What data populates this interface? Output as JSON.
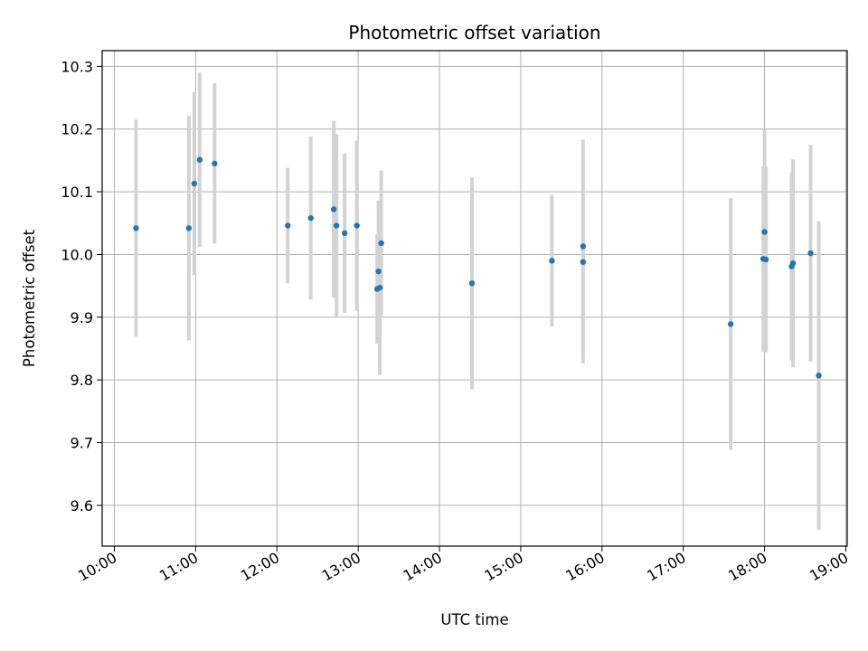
{
  "chart_data": {
    "type": "scatter",
    "title": "Photometric offset variation",
    "xlabel": "UTC time",
    "ylabel": "Photometric offset",
    "grid": true,
    "legend": "none",
    "x_is_time": true,
    "xlim": [
      "09:51",
      "19:01"
    ],
    "ylim": [
      9.535,
      10.325
    ],
    "x_ticks": [
      "10:00",
      "11:00",
      "12:00",
      "13:00",
      "14:00",
      "15:00",
      "16:00",
      "17:00",
      "18:00",
      "19:00"
    ],
    "y_ticks": [
      "9.6",
      "9.7",
      "9.8",
      "9.9",
      "10.0",
      "10.1",
      "10.2",
      "10.3"
    ],
    "colors": {
      "point": "#1f77b4",
      "errorbar": "#d3d3d3",
      "grid": "#b0b0b0"
    },
    "series": [
      {
        "points": [
          {
            "x": "10:16",
            "y": 10.042,
            "yerr": 0.173
          },
          {
            "x": "10:55",
            "y": 10.042,
            "yerr": 0.179
          },
          {
            "x": "10:59",
            "y": 10.113,
            "yerr": 0.146
          },
          {
            "x": "11:03",
            "y": 10.151,
            "yerr": 0.139
          },
          {
            "x": "11:14",
            "y": 10.145,
            "yerr": 0.128
          },
          {
            "x": "12:08",
            "y": 10.046,
            "yerr": 0.092
          },
          {
            "x": "12:25",
            "y": 10.058,
            "yerr": 0.13
          },
          {
            "x": "12:42",
            "y": 10.072,
            "yerr": 0.141
          },
          {
            "x": "12:44",
            "y": 10.046,
            "yerr": 0.146
          },
          {
            "x": "12:50",
            "y": 10.034,
            "yerr": 0.127
          },
          {
            "x": "12:59",
            "y": 10.046,
            "yerr": 0.136
          },
          {
            "x": "13:14",
            "y": 9.945,
            "yerr": 0.087
          },
          {
            "x": "13:15",
            "y": 9.973,
            "yerr": 0.113
          },
          {
            "x": "13:16",
            "y": 9.947,
            "yerr": 0.139
          },
          {
            "x": "13:17",
            "y": 10.018,
            "yerr": 0.116
          },
          {
            "x": "14:24",
            "y": 9.954,
            "yerr": 0.169
          },
          {
            "x": "15:23",
            "y": 9.99,
            "yerr": 0.105
          },
          {
            "x": "15:46",
            "y": 9.988,
            "yerr": 0.162
          },
          {
            "x": "15:46",
            "y": 10.013,
            "yerr": 0.17
          },
          {
            "x": "17:35",
            "y": 9.889,
            "yerr": 0.201
          },
          {
            "x": "17:59",
            "y": 9.993,
            "yerr": 0.148
          },
          {
            "x": "18:00",
            "y": 10.036,
            "yerr": 0.164
          },
          {
            "x": "18:01",
            "y": 9.992,
            "yerr": 0.148
          },
          {
            "x": "18:20",
            "y": 9.981,
            "yerr": 0.15
          },
          {
            "x": "18:21",
            "y": 9.986,
            "yerr": 0.166
          },
          {
            "x": "18:34",
            "y": 10.002,
            "yerr": 0.173
          },
          {
            "x": "18:40",
            "y": 9.807,
            "yerr": 0.246
          }
        ]
      }
    ]
  }
}
